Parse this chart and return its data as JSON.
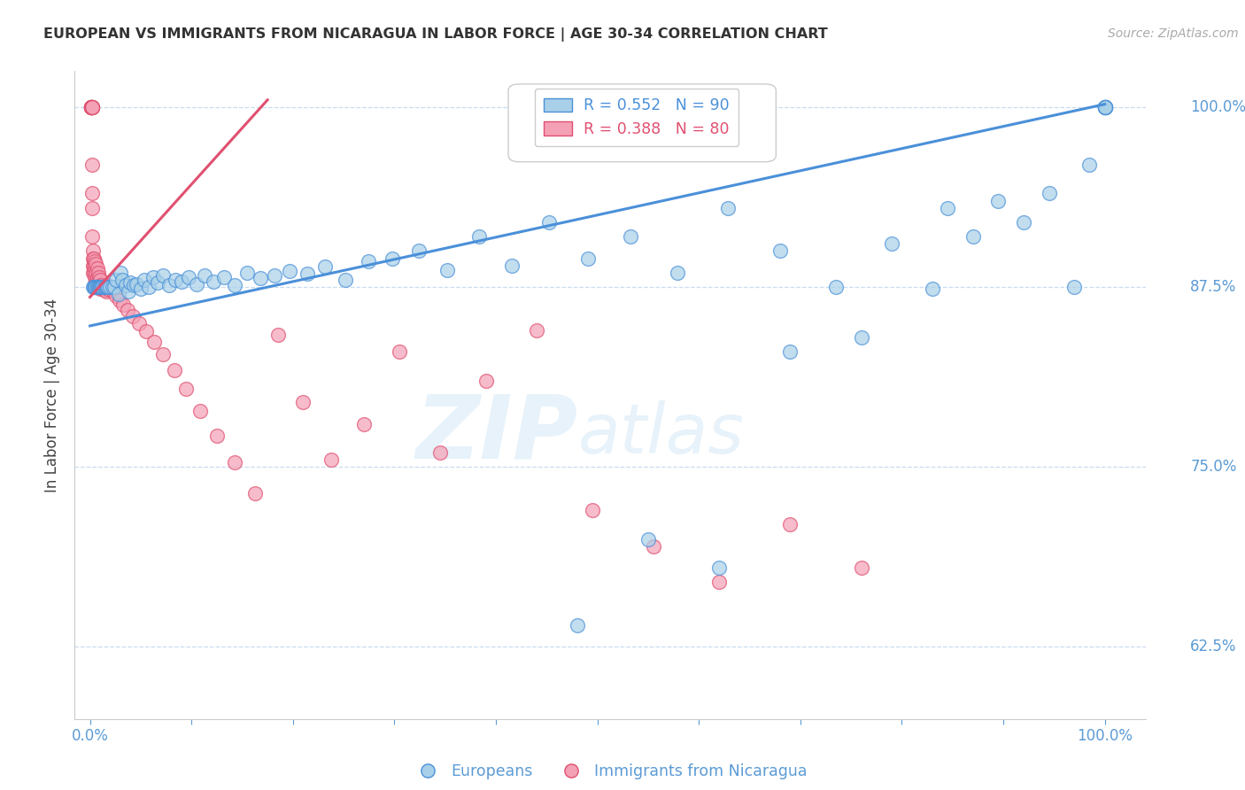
{
  "title": "EUROPEAN VS IMMIGRANTS FROM NICARAGUA IN LABOR FORCE | AGE 30-34 CORRELATION CHART",
  "source": "Source: ZipAtlas.com",
  "ylabel": "In Labor Force | Age 30-34",
  "blue_color": "#A8D0E8",
  "pink_color": "#F4A0B5",
  "blue_line_color": "#4A90D9",
  "pink_line_color": "#E05070",
  "axis_color": "#5B9BD5",
  "grid_color": "#C8DCF0",
  "watermark_zip": "ZIP",
  "watermark_atlas": "atlas",
  "legend_blue_R": "R = 0.552",
  "legend_blue_N": "N = 90",
  "legend_pink_R": "R = 0.388",
  "legend_pink_N": "N = 80",
  "legend_europeans": "Europeans",
  "legend_nicaragua": "Immigrants from Nicaragua",
  "ytick_vals": [
    0.625,
    0.75,
    0.875,
    1.0
  ],
  "ytick_labels": [
    "62.5%",
    "75.0%",
    "87.5%",
    "100.0%"
  ],
  "xtick_vals": [
    0.0,
    0.1,
    0.2,
    0.3,
    0.4,
    0.5,
    0.6,
    0.7,
    0.8,
    0.9,
    1.0
  ],
  "xtick_labels": [
    "0.0%",
    "",
    "",
    "",
    "",
    "",
    "",
    "",
    "",
    "",
    "100.0%"
  ],
  "blue_line_x": [
    0.0,
    1.0
  ],
  "blue_line_y": [
    0.848,
    1.002
  ],
  "pink_line_x": [
    0.0,
    0.175
  ],
  "pink_line_y": [
    0.868,
    1.005
  ],
  "blue_x": [
    0.003,
    0.004,
    0.005,
    0.005,
    0.006,
    0.007,
    0.007,
    0.008,
    0.009,
    0.01,
    0.01,
    0.011,
    0.012,
    0.013,
    0.014,
    0.015,
    0.016,
    0.017,
    0.018,
    0.02,
    0.022,
    0.024,
    0.026,
    0.028,
    0.03,
    0.032,
    0.035,
    0.038,
    0.04,
    0.043,
    0.046,
    0.05,
    0.054,
    0.058,
    0.062,
    0.067,
    0.072,
    0.078,
    0.084,
    0.09,
    0.097,
    0.105,
    0.113,
    0.122,
    0.132,
    0.143,
    0.155,
    0.168,
    0.182,
    0.197,
    0.214,
    0.232,
    0.252,
    0.274,
    0.298,
    0.324,
    0.352,
    0.383,
    0.416,
    0.452,
    0.491,
    0.533,
    0.579,
    0.629,
    0.68,
    0.735,
    0.79,
    0.845,
    0.87,
    0.895,
    0.92,
    0.945,
    0.97,
    0.985,
    1.0,
    1.0,
    1.0,
    1.0,
    1.0,
    1.0,
    1.0,
    1.0,
    1.0,
    1.0,
    0.83,
    0.76,
    0.69,
    0.62,
    0.55,
    0.48
  ],
  "blue_y": [
    0.875,
    0.875,
    0.875,
    0.875,
    0.875,
    0.875,
    0.875,
    0.875,
    0.875,
    0.875,
    0.875,
    0.875,
    0.875,
    0.875,
    0.875,
    0.875,
    0.875,
    0.875,
    0.875,
    0.875,
    0.875,
    0.875,
    0.88,
    0.87,
    0.885,
    0.88,
    0.876,
    0.872,
    0.878,
    0.876,
    0.877,
    0.874,
    0.88,
    0.875,
    0.882,
    0.878,
    0.883,
    0.876,
    0.88,
    0.879,
    0.882,
    0.877,
    0.883,
    0.879,
    0.882,
    0.876,
    0.885,
    0.881,
    0.883,
    0.886,
    0.884,
    0.889,
    0.88,
    0.893,
    0.895,
    0.9,
    0.887,
    0.91,
    0.89,
    0.92,
    0.895,
    0.91,
    0.885,
    0.93,
    0.9,
    0.875,
    0.905,
    0.93,
    0.91,
    0.935,
    0.92,
    0.94,
    0.875,
    0.96,
    1.0,
    1.0,
    1.0,
    1.0,
    1.0,
    1.0,
    1.0,
    1.0,
    1.0,
    1.0,
    0.874,
    0.84,
    0.83,
    0.68,
    0.7,
    0.64
  ],
  "pink_x": [
    0.001,
    0.001,
    0.001,
    0.001,
    0.001,
    0.001,
    0.001,
    0.001,
    0.001,
    0.001,
    0.001,
    0.002,
    0.002,
    0.002,
    0.002,
    0.002,
    0.002,
    0.002,
    0.002,
    0.002,
    0.003,
    0.003,
    0.003,
    0.003,
    0.004,
    0.004,
    0.004,
    0.005,
    0.005,
    0.005,
    0.005,
    0.006,
    0.006,
    0.006,
    0.007,
    0.007,
    0.008,
    0.008,
    0.009,
    0.009,
    0.01,
    0.01,
    0.011,
    0.012,
    0.013,
    0.014,
    0.015,
    0.016,
    0.017,
    0.019,
    0.021,
    0.023,
    0.026,
    0.029,
    0.033,
    0.037,
    0.042,
    0.048,
    0.055,
    0.063,
    0.072,
    0.083,
    0.095,
    0.109,
    0.125,
    0.143,
    0.163,
    0.185,
    0.21,
    0.238,
    0.27,
    0.305,
    0.345,
    0.39,
    0.44,
    0.495,
    0.555,
    0.62,
    0.69,
    0.76
  ],
  "pink_y": [
    1.0,
    1.0,
    1.0,
    1.0,
    1.0,
    1.0,
    1.0,
    1.0,
    1.0,
    1.0,
    1.0,
    1.0,
    1.0,
    1.0,
    1.0,
    1.0,
    0.96,
    0.94,
    0.93,
    0.91,
    0.9,
    0.895,
    0.89,
    0.885,
    0.895,
    0.89,
    0.885,
    0.893,
    0.888,
    0.882,
    0.877,
    0.891,
    0.885,
    0.879,
    0.888,
    0.882,
    0.885,
    0.878,
    0.882,
    0.876,
    0.88,
    0.874,
    0.876,
    0.875,
    0.874,
    0.873,
    0.875,
    0.872,
    0.876,
    0.873,
    0.875,
    0.872,
    0.869,
    0.866,
    0.863,
    0.859,
    0.855,
    0.85,
    0.844,
    0.837,
    0.828,
    0.817,
    0.804,
    0.789,
    0.772,
    0.753,
    0.732,
    0.842,
    0.795,
    0.755,
    0.78,
    0.83,
    0.76,
    0.81,
    0.845,
    0.72,
    0.695,
    0.67,
    0.71,
    0.68
  ]
}
